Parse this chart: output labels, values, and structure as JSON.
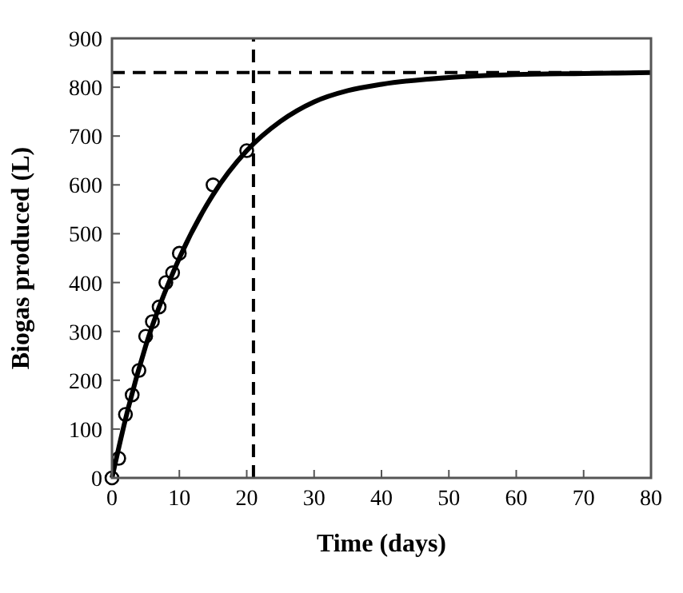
{
  "chart_data": {
    "type": "scatter",
    "xlabel": "Time (days)",
    "ylabel": "Biogas produced (L)",
    "series": [
      {
        "marker": "circle",
        "color": "#000000",
        "x": [
          0,
          1,
          2,
          3,
          4,
          5,
          6,
          7,
          8,
          9,
          10,
          15,
          20
        ],
        "values": [
          0,
          40,
          130,
          170,
          220,
          290,
          320,
          350,
          400,
          420,
          460,
          600,
          670
        ]
      },
      {
        "type": "line",
        "marker": "none",
        "line_style": "solid",
        "color": "#000000",
        "x": [
          0,
          2,
          5,
          10,
          15,
          20,
          25,
          30,
          35,
          40,
          50,
          60,
          70,
          80
        ],
        "values": [
          0,
          120,
          270,
          450,
          580,
          670,
          730,
          770,
          793,
          806,
          820,
          826,
          828,
          830
        ]
      }
    ],
    "xlim": [
      0,
      80
    ],
    "xticks": [
      0,
      10,
      20,
      30,
      40,
      50,
      60,
      70,
      80
    ],
    "ylim": [
      0,
      900
    ],
    "yticks": [
      0,
      100,
      200,
      300,
      400,
      500,
      600,
      700,
      800,
      900
    ],
    "ref_lines": [
      {
        "axis": "y",
        "value": 830,
        "line_style": "dashed",
        "color": "#000000"
      },
      {
        "axis": "x",
        "value": 21,
        "line_style": "dashed",
        "color": "#000000"
      }
    ],
    "grid": false
  }
}
